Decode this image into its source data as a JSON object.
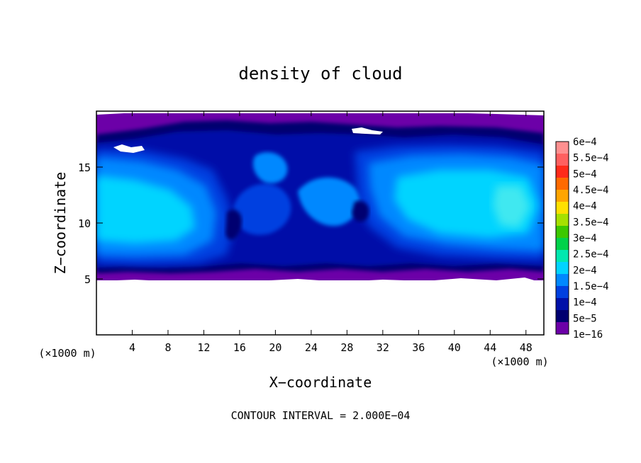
{
  "chart_data": {
    "type": "heatmap",
    "title": "density of cloud",
    "xlabel": "X−coordinate",
    "ylabel": "Z−coordinate",
    "x_unit": "(×1000 m)",
    "z_unit": "(×1000 m)",
    "xlim": [
      0,
      50
    ],
    "ylim": [
      0,
      20
    ],
    "x_ticks": [
      4,
      8,
      12,
      16,
      20,
      24,
      28,
      32,
      36,
      40,
      44,
      48
    ],
    "y_ticks": [
      5,
      10,
      15
    ],
    "footer": "CONTOUR INTERVAL = 2.000E−04",
    "colorbar": {
      "labels": [
        "6e−4",
        "5.5e−4",
        "5e−4",
        "4.5e−4",
        "4e−4",
        "3.5e−4",
        "3e−4",
        "2.5e−4",
        "2e−4",
        "1.5e−4",
        "1e−4",
        "5e−5",
        "1e−16"
      ],
      "colors": [
        "#ff9090",
        "#ff6060",
        "#ff2a1a",
        "#ff6a00",
        "#ffa500",
        "#ffe000",
        "#a6e000",
        "#3cc800",
        "#00d24a",
        "#00e8b0",
        "#00d4ff",
        "#0088ff",
        "#0040e0",
        "#0010a8",
        "#000070",
        "#6c00a8"
      ]
    },
    "cloud_region": {
      "z_bottom": 5.0,
      "z_top": 19.5
    }
  }
}
